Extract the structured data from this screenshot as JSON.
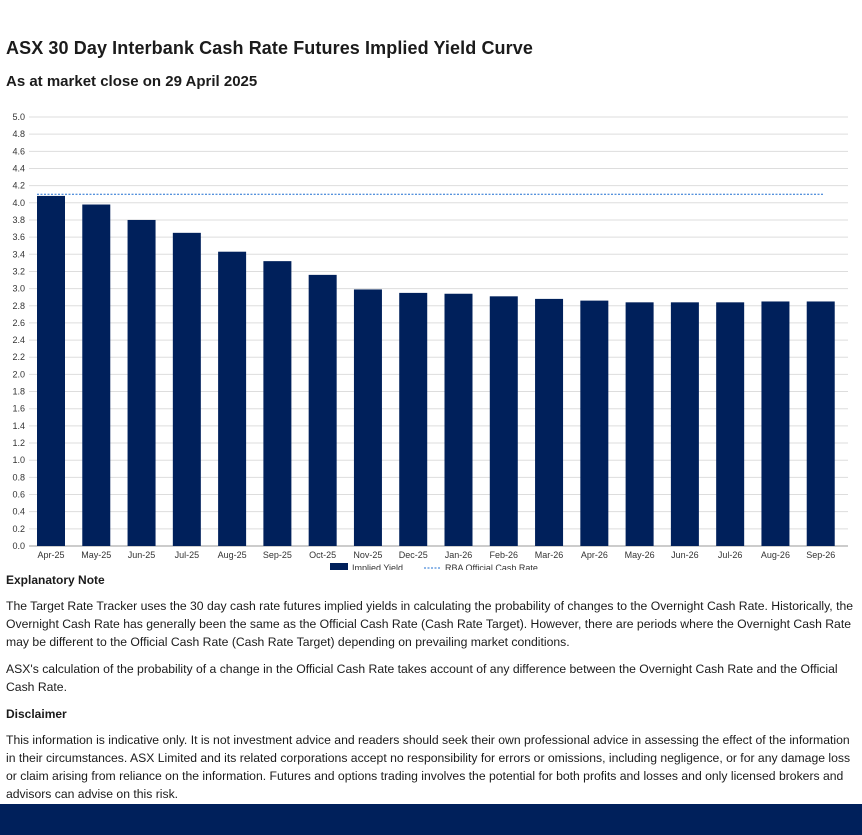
{
  "header": {
    "title": "ASX 30 Day Interbank Cash Rate Futures Implied Yield Curve",
    "subtitle": "As at market close on 29 April 2025"
  },
  "chart_data": {
    "type": "bar",
    "title": "",
    "xlabel": "",
    "ylabel": "",
    "ylim": [
      0,
      5.0
    ],
    "ytick_step": 0.2,
    "grid": true,
    "legend_position": "bottom-center",
    "categories": [
      "Apr-25",
      "May-25",
      "Jun-25",
      "Jul-25",
      "Aug-25",
      "Sep-25",
      "Oct-25",
      "Nov-25",
      "Dec-25",
      "Jan-26",
      "Feb-26",
      "Mar-26",
      "Apr-26",
      "May-26",
      "Jun-26",
      "Jul-26",
      "Aug-26",
      "Sep-26"
    ],
    "series": [
      {
        "name": "Implied Yield",
        "kind": "bar",
        "color": "#00205b",
        "values": [
          4.08,
          3.98,
          3.8,
          3.65,
          3.43,
          3.32,
          3.16,
          2.99,
          2.95,
          2.94,
          2.91,
          2.88,
          2.86,
          2.84,
          2.84,
          2.84,
          2.85,
          2.85
        ]
      },
      {
        "name": "RBA Official Cash Rate",
        "kind": "dashed-line",
        "color": "#1f6fd1",
        "value": 4.1
      }
    ]
  },
  "notes": {
    "explanatory_heading": "Explanatory Note",
    "explanatory_p1": "The Target Rate Tracker uses the 30 day cash rate futures implied yields in calculating the probability of changes to the Overnight Cash Rate. Historically, the Overnight Cash Rate has generally been the same as the Official Cash Rate (Cash Rate Target). However, there are periods where the Overnight Cash Rate may be different to the Official Cash Rate (Cash Rate Target) depending on prevailing market conditions.",
    "explanatory_p2": "ASX's calculation of the probability of a change in the Official Cash Rate takes account of any difference between the Overnight Cash Rate and the Official Cash Rate.",
    "disclaimer_heading": "Disclaimer",
    "disclaimer_p1": "This information is indicative only. It is not investment advice and readers should seek their own professional advice in assessing the effect of the information in their circumstances. ASX Limited and its related corporations accept no responsibility for errors or omissions, including negligence, or for any damage loss or claim arising from reliance on the information. Futures and options trading involves the potential for both profits and losses and only licensed brokers and advisors can advise on this risk."
  }
}
